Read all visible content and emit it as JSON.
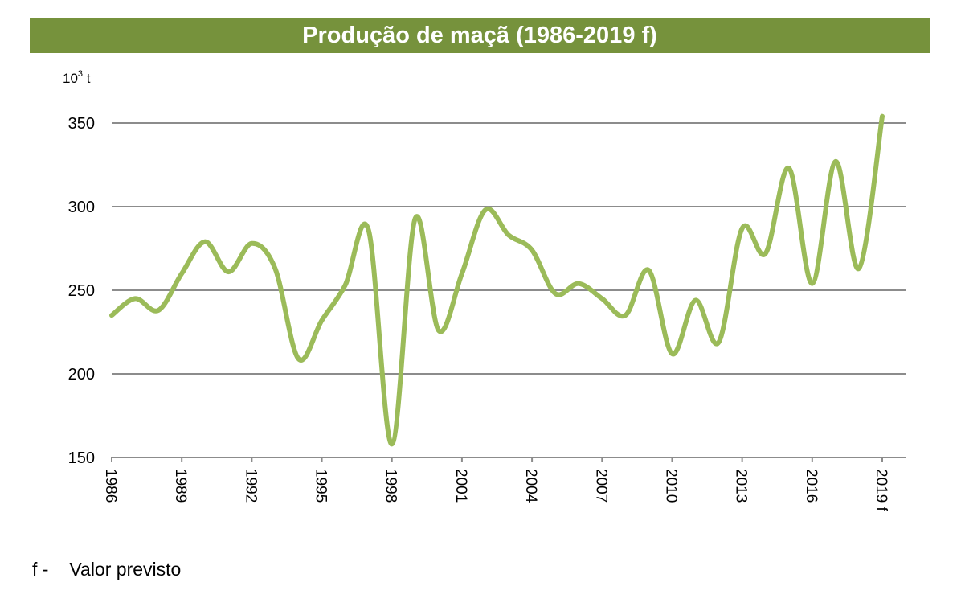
{
  "chart_data": {
    "type": "line",
    "title": "Produção de maçã (1986-2019 f)",
    "ylabel_base": "10",
    "ylabel_exp": "3",
    "ylabel_unit": "t",
    "xlabel": "",
    "ylim": [
      150,
      350
    ],
    "yticks": [
      150,
      200,
      250,
      300,
      350
    ],
    "grid": true,
    "legend": "none",
    "x": [
      1986,
      1987,
      1988,
      1989,
      1990,
      1991,
      1992,
      1993,
      1994,
      1995,
      1996,
      1997,
      1998,
      1999,
      2000,
      2001,
      2002,
      2003,
      2004,
      2005,
      2006,
      2007,
      2008,
      2009,
      2010,
      2011,
      2012,
      2013,
      2014,
      2015,
      2016,
      2017,
      2018,
      2019
    ],
    "xtick_labels": [
      "1986",
      "1989",
      "1992",
      "1995",
      "1998",
      "2001",
      "2004",
      "2007",
      "2010",
      "2013",
      "2016",
      "2019 f"
    ],
    "xtick_years": [
      1986,
      1989,
      1992,
      1995,
      1998,
      2001,
      2004,
      2007,
      2010,
      2013,
      2016,
      2019
    ],
    "series": [
      {
        "name": "Produção de maçã",
        "color": "#9bbb59",
        "values": [
          235,
          245,
          238,
          260,
          279,
          261,
          278,
          263,
          209,
          232,
          253,
          286,
          158,
          293,
          226,
          260,
          298,
          283,
          274,
          248,
          254,
          245,
          235,
          262,
          212,
          244,
          219,
          287,
          272,
          323,
          254,
          327,
          263,
          354
        ]
      }
    ]
  },
  "header": {
    "title": "Produção de maçã (1986-2019 f)"
  },
  "footnote": {
    "key": "f -",
    "text": "Valor previsto"
  },
  "colors": {
    "title_bar": "#76923c",
    "line": "#9bbb59",
    "grid": "#8c8c8c"
  }
}
